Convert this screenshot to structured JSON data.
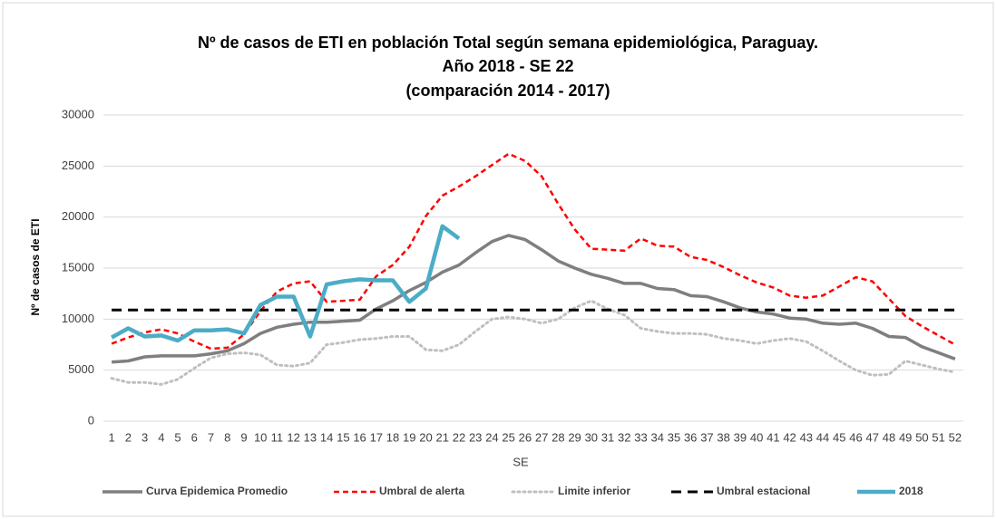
{
  "chart_data": {
    "type": "line",
    "title": [
      "Nº de casos de ETI en población Total según semana epidemiológica, Paraguay.",
      "Año 2018 - SE 22",
      "(comparación 2014 - 2017)"
    ],
    "x_label": "SE",
    "y_label": "Nº de casos de ETI",
    "categories": [
      "1",
      "2",
      "3",
      "4",
      "5",
      "6",
      "7",
      "8",
      "9",
      "10",
      "11",
      "12",
      "13",
      "14",
      "15",
      "16",
      "17",
      "18",
      "19",
      "20",
      "21",
      "22",
      "23",
      "24",
      "25",
      "26",
      "27",
      "28",
      "29",
      "30",
      "31",
      "32",
      "33",
      "34",
      "35",
      "36",
      "37",
      "38",
      "39",
      "40",
      "41",
      "42",
      "43",
      "44",
      "45",
      "46",
      "47",
      "48",
      "49",
      "50",
      "51",
      "52"
    ],
    "ylim": [
      0,
      30000
    ],
    "yticks": [
      0,
      5000,
      10000,
      15000,
      20000,
      25000,
      30000
    ],
    "grid": true,
    "legend": "bottom",
    "series": [
      {
        "name": "Curva Epidemica Promedio",
        "color": "#7f7f7f",
        "line_style": "solid",
        "values": [
          5800,
          5900,
          6300,
          6400,
          6400,
          6400,
          6600,
          6900,
          7600,
          8600,
          9200,
          9500,
          9700,
          9700,
          9800,
          9900,
          11000,
          11800,
          12800,
          13600,
          14600,
          15300,
          16500,
          17600,
          18200,
          17800,
          16800,
          15700,
          15000,
          14400,
          14000,
          13500,
          13500,
          13000,
          12900,
          12300,
          12200,
          11700,
          11100,
          10700,
          10500,
          10100,
          10000,
          9600,
          9500,
          9600,
          9100,
          8300,
          8200,
          7300,
          6700,
          6100
        ]
      },
      {
        "name": "Umbral de alerta",
        "color": "#ff0000",
        "line_style": "dashed",
        "values": [
          7600,
          8200,
          8700,
          9000,
          8600,
          7800,
          7100,
          7200,
          8500,
          10800,
          12700,
          13500,
          13700,
          11700,
          11800,
          11900,
          14200,
          15300,
          17100,
          20100,
          22100,
          23000,
          24000,
          25100,
          26200,
          25500,
          24000,
          21300,
          18800,
          16900,
          16800,
          16700,
          17900,
          17200,
          17100,
          16100,
          15800,
          15100,
          14300,
          13600,
          13100,
          12300,
          12100,
          12300,
          13200,
          14100,
          13700,
          12000,
          10300,
          9300,
          8400,
          7500
        ]
      },
      {
        "name": "Limite inferior",
        "color": "#bfbfbf",
        "line_style": "dotted",
        "values": [
          4200,
          3800,
          3800,
          3600,
          4100,
          5200,
          6200,
          6600,
          6700,
          6500,
          5500,
          5400,
          5700,
          7500,
          7700,
          8000,
          8100,
          8300,
          8300,
          7000,
          6900,
          7500,
          8800,
          10000,
          10200,
          10000,
          9600,
          10000,
          11100,
          11800,
          11000,
          10400,
          9100,
          8800,
          8600,
          8600,
          8500,
          8100,
          7900,
          7600,
          7900,
          8100,
          7800,
          6900,
          5900,
          5000,
          4500,
          4600,
          5900,
          5500,
          5100,
          4800
        ]
      },
      {
        "name": "Umbral estacional",
        "color": "#000000",
        "line_style": "long-dashed",
        "values": [
          10900,
          10900,
          10900,
          10900,
          10900,
          10900,
          10900,
          10900,
          10900,
          10900,
          10900,
          10900,
          10900,
          10900,
          10900,
          10900,
          10900,
          10900,
          10900,
          10900,
          10900,
          10900,
          10900,
          10900,
          10900,
          10900,
          10900,
          10900,
          10900,
          10900,
          10900,
          10900,
          10900,
          10900,
          10900,
          10900,
          10900,
          10900,
          10900,
          10900,
          10900,
          10900,
          10900,
          10900,
          10900,
          10900,
          10900,
          10900,
          10900,
          10900,
          10900,
          10900
        ]
      },
      {
        "name": "2018",
        "color": "#4bacc6",
        "line_style": "thick",
        "values": [
          8200,
          9100,
          8300,
          8400,
          7900,
          8900,
          8900,
          9000,
          8600,
          11400,
          12200,
          12200,
          8300,
          13400,
          13700,
          13900,
          13800,
          13800,
          11700,
          13000,
          19100,
          17900,
          null,
          null,
          null,
          null,
          null,
          null,
          null,
          null,
          null,
          null,
          null,
          null,
          null,
          null,
          null,
          null,
          null,
          null,
          null,
          null,
          null,
          null,
          null,
          null,
          null,
          null,
          null,
          null,
          null,
          null
        ]
      }
    ]
  }
}
